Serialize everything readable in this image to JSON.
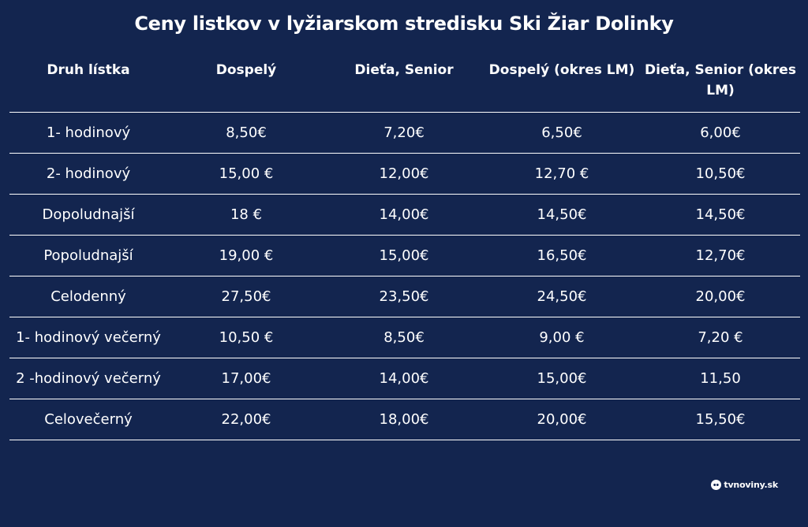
{
  "title": "Ceny listkov v lyžiarskom stredisku Ski Žiar Dolinky",
  "table": {
    "headers": [
      "Druh lístka",
      "Dospelý",
      "Dieťa, Senior",
      "Dospelý (okres LM)",
      "Dieťa, Senior (okres LM)"
    ],
    "rows": [
      [
        "1- hodinový",
        "8,50€",
        "7,20€",
        "6,50€",
        "6,00€"
      ],
      [
        "2- hodinový",
        "15,00 €",
        "12,00€",
        "12,70 €",
        "10,50€"
      ],
      [
        "Dopoludnajší",
        "18 €",
        "14,00€",
        "14,50€",
        "14,50€"
      ],
      [
        "Popoludnajší",
        "19,00 €",
        "15,00€",
        "16,50€",
        "12,70€"
      ],
      [
        "Celodenný",
        "27,50€",
        "23,50€",
        "24,50€",
        "20,00€"
      ],
      [
        "1- hodinový večerný",
        "10,50 €",
        "8,50€",
        "9,00 €",
        "7,20 €"
      ],
      [
        "2 -hodinový večerný",
        "17,00€",
        "14,00€",
        "15,00€",
        "11,50"
      ],
      [
        "Celovečerný",
        "22,00€",
        "18,00€",
        "20,00€",
        "15,50€"
      ]
    ]
  },
  "logo": {
    "text": "tvnoviny.sk",
    "icon": "tvnoviny-logo-icon"
  },
  "colors": {
    "background": "#13254f",
    "text": "#ffffff",
    "rule": "#ffffff"
  }
}
